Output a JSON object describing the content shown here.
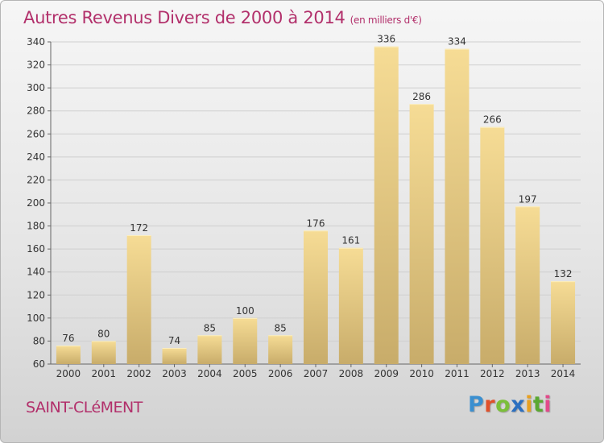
{
  "title": "Autres Revenus Divers de 2000 à 2014",
  "title_unit": "(en milliers d'€)",
  "commune": "SAINT-CLéMENT",
  "logo": {
    "letters": [
      "P",
      "r",
      "o",
      "x",
      "i",
      "t",
      "i"
    ],
    "colors": [
      "#3a8fd0",
      "#e0502a",
      "#7bbf3a",
      "#2b6fc0",
      "#e8a020",
      "#5aa832",
      "#e24a8a"
    ]
  },
  "colors": {
    "title": "#b2306b",
    "bar_light": "#f6dc95",
    "bar_dark": "#c8ac6a",
    "label": "#333333"
  },
  "chart_data": {
    "type": "bar",
    "categories": [
      "2000",
      "2001",
      "2002",
      "2003",
      "2004",
      "2005",
      "2006",
      "2007",
      "2008",
      "2009",
      "2010",
      "2011",
      "2012",
      "2013",
      "2014"
    ],
    "values": [
      76,
      80,
      172,
      74,
      85,
      100,
      85,
      176,
      161,
      336,
      286,
      334,
      266,
      197,
      132
    ],
    "ylim": [
      60,
      340
    ],
    "yticks": [
      60,
      80,
      100,
      120,
      140,
      160,
      180,
      200,
      220,
      240,
      260,
      280,
      300,
      320,
      340
    ],
    "grid": true
  }
}
